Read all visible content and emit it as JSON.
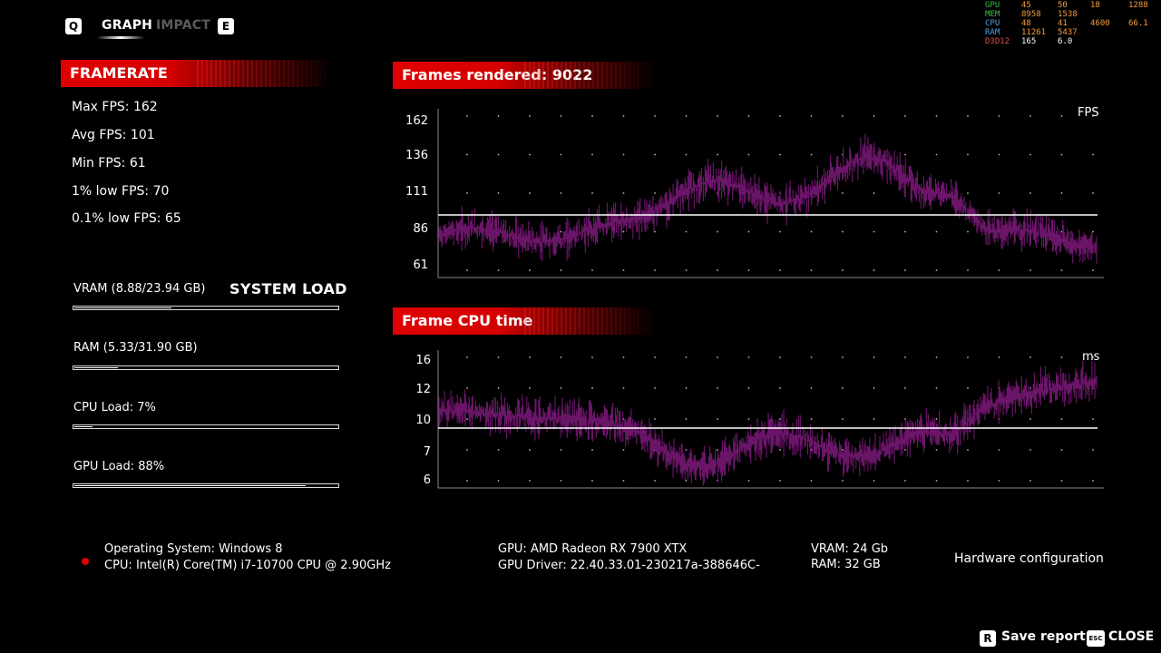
{
  "nav": {
    "left_key": "Q",
    "right_key": "E",
    "tabs": [
      {
        "label": "GRAPH",
        "active": true
      },
      {
        "label": "IMPACT",
        "active": false
      }
    ]
  },
  "framerate": {
    "title": "FRAMERATE",
    "max": "Max FPS: 162",
    "avg": "Avg FPS: 101",
    "min": "Min FPS: 61",
    "low1": "1% low FPS: 70",
    "low01": "0.1% low FPS: 65"
  },
  "system_load": {
    "title": "SYSTEM LOAD",
    "items": [
      {
        "label": "VRAM (8.88/23.94 GB)",
        "fraction": 0.37
      },
      {
        "label": "RAM (5.33/31.90 GB)",
        "fraction": 0.167
      },
      {
        "label": "CPU Load: 7%",
        "fraction": 0.07
      },
      {
        "label": "GPU Load: 88%",
        "fraction": 0.88
      }
    ]
  },
  "fps_chart": {
    "title": "Frames rendered: 9022",
    "unit": "FPS",
    "ticks": [
      "162",
      "136",
      "111",
      "86",
      "61"
    ],
    "average": 101,
    "min": 61,
    "max": 162,
    "line_color": "#6a1568"
  },
  "cpu_chart": {
    "title": "Frame CPU time",
    "unit": "ms",
    "ticks": [
      "16",
      "12",
      "10",
      "7",
      "6"
    ],
    "average": 9.7,
    "line_color": "#6a1568"
  },
  "hardware": {
    "os": "Operating System: Windows 8",
    "cpu": "CPU: Intel(R) Core(TM) i7-10700 CPU @ 2.90GHz",
    "gpu": "GPU: AMD Radeon RX 7900 XTX",
    "driver": "GPU Driver: 22.40.33.01-230217a-388646C-",
    "vram": "VRAM: 24 Gb",
    "ram": "RAM: 32 GB",
    "section_title": "Hardware configuration"
  },
  "overlay": {
    "rows": [
      {
        "label": "GPU",
        "color": "#3fbf3f",
        "v1": "45",
        "v2": "50",
        "v3": "18",
        "v4": "1288"
      },
      {
        "label": "MEM",
        "color": "#3fbf3f",
        "v1": "8958",
        "v2": "1538",
        "v3": "",
        "v4": ""
      },
      {
        "label": "CPU",
        "color": "#4aa0e0",
        "v1": "48",
        "v2": "41",
        "v3": "4600",
        "v4": "66.1"
      },
      {
        "label": "RAM",
        "color": "#4aa0e0",
        "v1": "11261",
        "v2": "5437",
        "v3": "",
        "v4": ""
      },
      {
        "label": "D3D12",
        "color": "#e05050",
        "v1": "165",
        "v2": "6.0",
        "v3": "",
        "v4": ""
      }
    ]
  },
  "footer": {
    "save_key": "R",
    "save_label": "Save report",
    "close_key": "ESC",
    "close_label": "CLOSE"
  }
}
